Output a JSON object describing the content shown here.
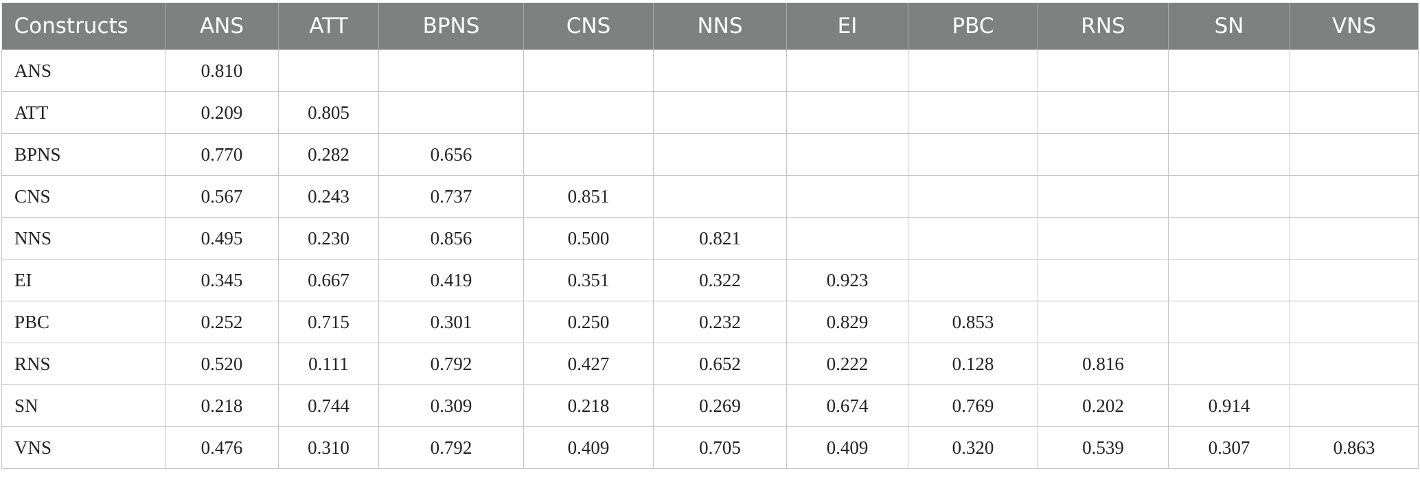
{
  "table": {
    "header": [
      "Constructs",
      "ANS",
      "ATT",
      "BPNS",
      "CNS",
      "NNS",
      "EI",
      "PBC",
      "RNS",
      "SN",
      "VNS"
    ],
    "rows": [
      [
        "ANS",
        "0.810"
      ],
      [
        "ATT",
        "0.209",
        "0.805"
      ],
      [
        "BPNS",
        "0.770",
        "0.282",
        "0.656"
      ],
      [
        "CNS",
        "0.567",
        "0.243",
        "0.737",
        "0.851"
      ],
      [
        "NNS",
        "0.495",
        "0.230",
        "0.856",
        "0.500",
        "0.821"
      ],
      [
        "EI",
        "0.345",
        "0.667",
        "0.419",
        "0.351",
        "0.322",
        "0.923"
      ],
      [
        "PBC",
        "0.252",
        "0.715",
        "0.301",
        "0.250",
        "0.232",
        "0.829",
        "0.853"
      ],
      [
        "RNS",
        "0.520",
        "0.111",
        "0.792",
        "0.427",
        "0.652",
        "0.222",
        "0.128",
        "0.816"
      ],
      [
        "SN",
        "0.218",
        "0.744",
        "0.309",
        "0.218",
        "0.269",
        "0.674",
        "0.769",
        "0.202",
        "0.914"
      ],
      [
        "VNS",
        "0.476",
        "0.310",
        "0.792",
        "0.409",
        "0.705",
        "0.409",
        "0.320",
        "0.539",
        "0.307",
        "0.863"
      ]
    ]
  }
}
